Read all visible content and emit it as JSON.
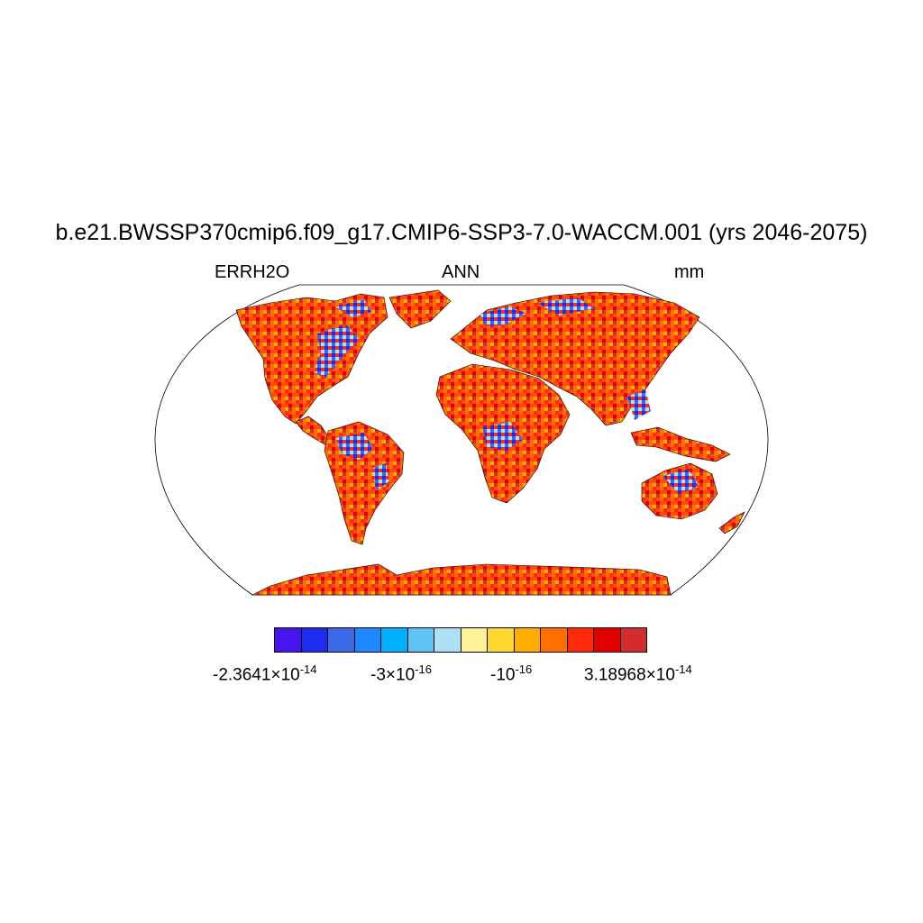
{
  "title": "b.e21.BWSSP370cmip6.f09_g17.CMIP6-SSP3-7.0-WACCM.001 (yrs 2046-2075)",
  "subtitle_left": "ERRH2O",
  "subtitle_center": "ANN",
  "subtitle_right": "mm",
  "map": {
    "projection": "Robinson",
    "fill_dominant_colors": [
      "#ff3010",
      "#ff7000",
      "#e00000"
    ],
    "ocean_color": "#ffffff",
    "outline_color": "#000000"
  },
  "colorbar": {
    "colors": [
      "#4a14f0",
      "#1e2cf0",
      "#3c6ae6",
      "#2088ff",
      "#00b0ff",
      "#5ec4f4",
      "#ade0f4",
      "#fff39a",
      "#ffd82e",
      "#ffae00",
      "#ff7000",
      "#ff2a0a",
      "#e00000",
      "#d32c2c"
    ],
    "labels": [
      {
        "mantissa": "-2.3641",
        "times": "×",
        "base": "10",
        "exp": "-14"
      },
      {
        "mantissa": "-3",
        "times": "×",
        "base": "10",
        "exp": "-16"
      },
      {
        "mantissa": "",
        "times": "",
        "base": "-10",
        "exp": "-16"
      },
      {
        "mantissa": "3.18968",
        "times": "×",
        "base": "10",
        "exp": "-14"
      }
    ]
  }
}
